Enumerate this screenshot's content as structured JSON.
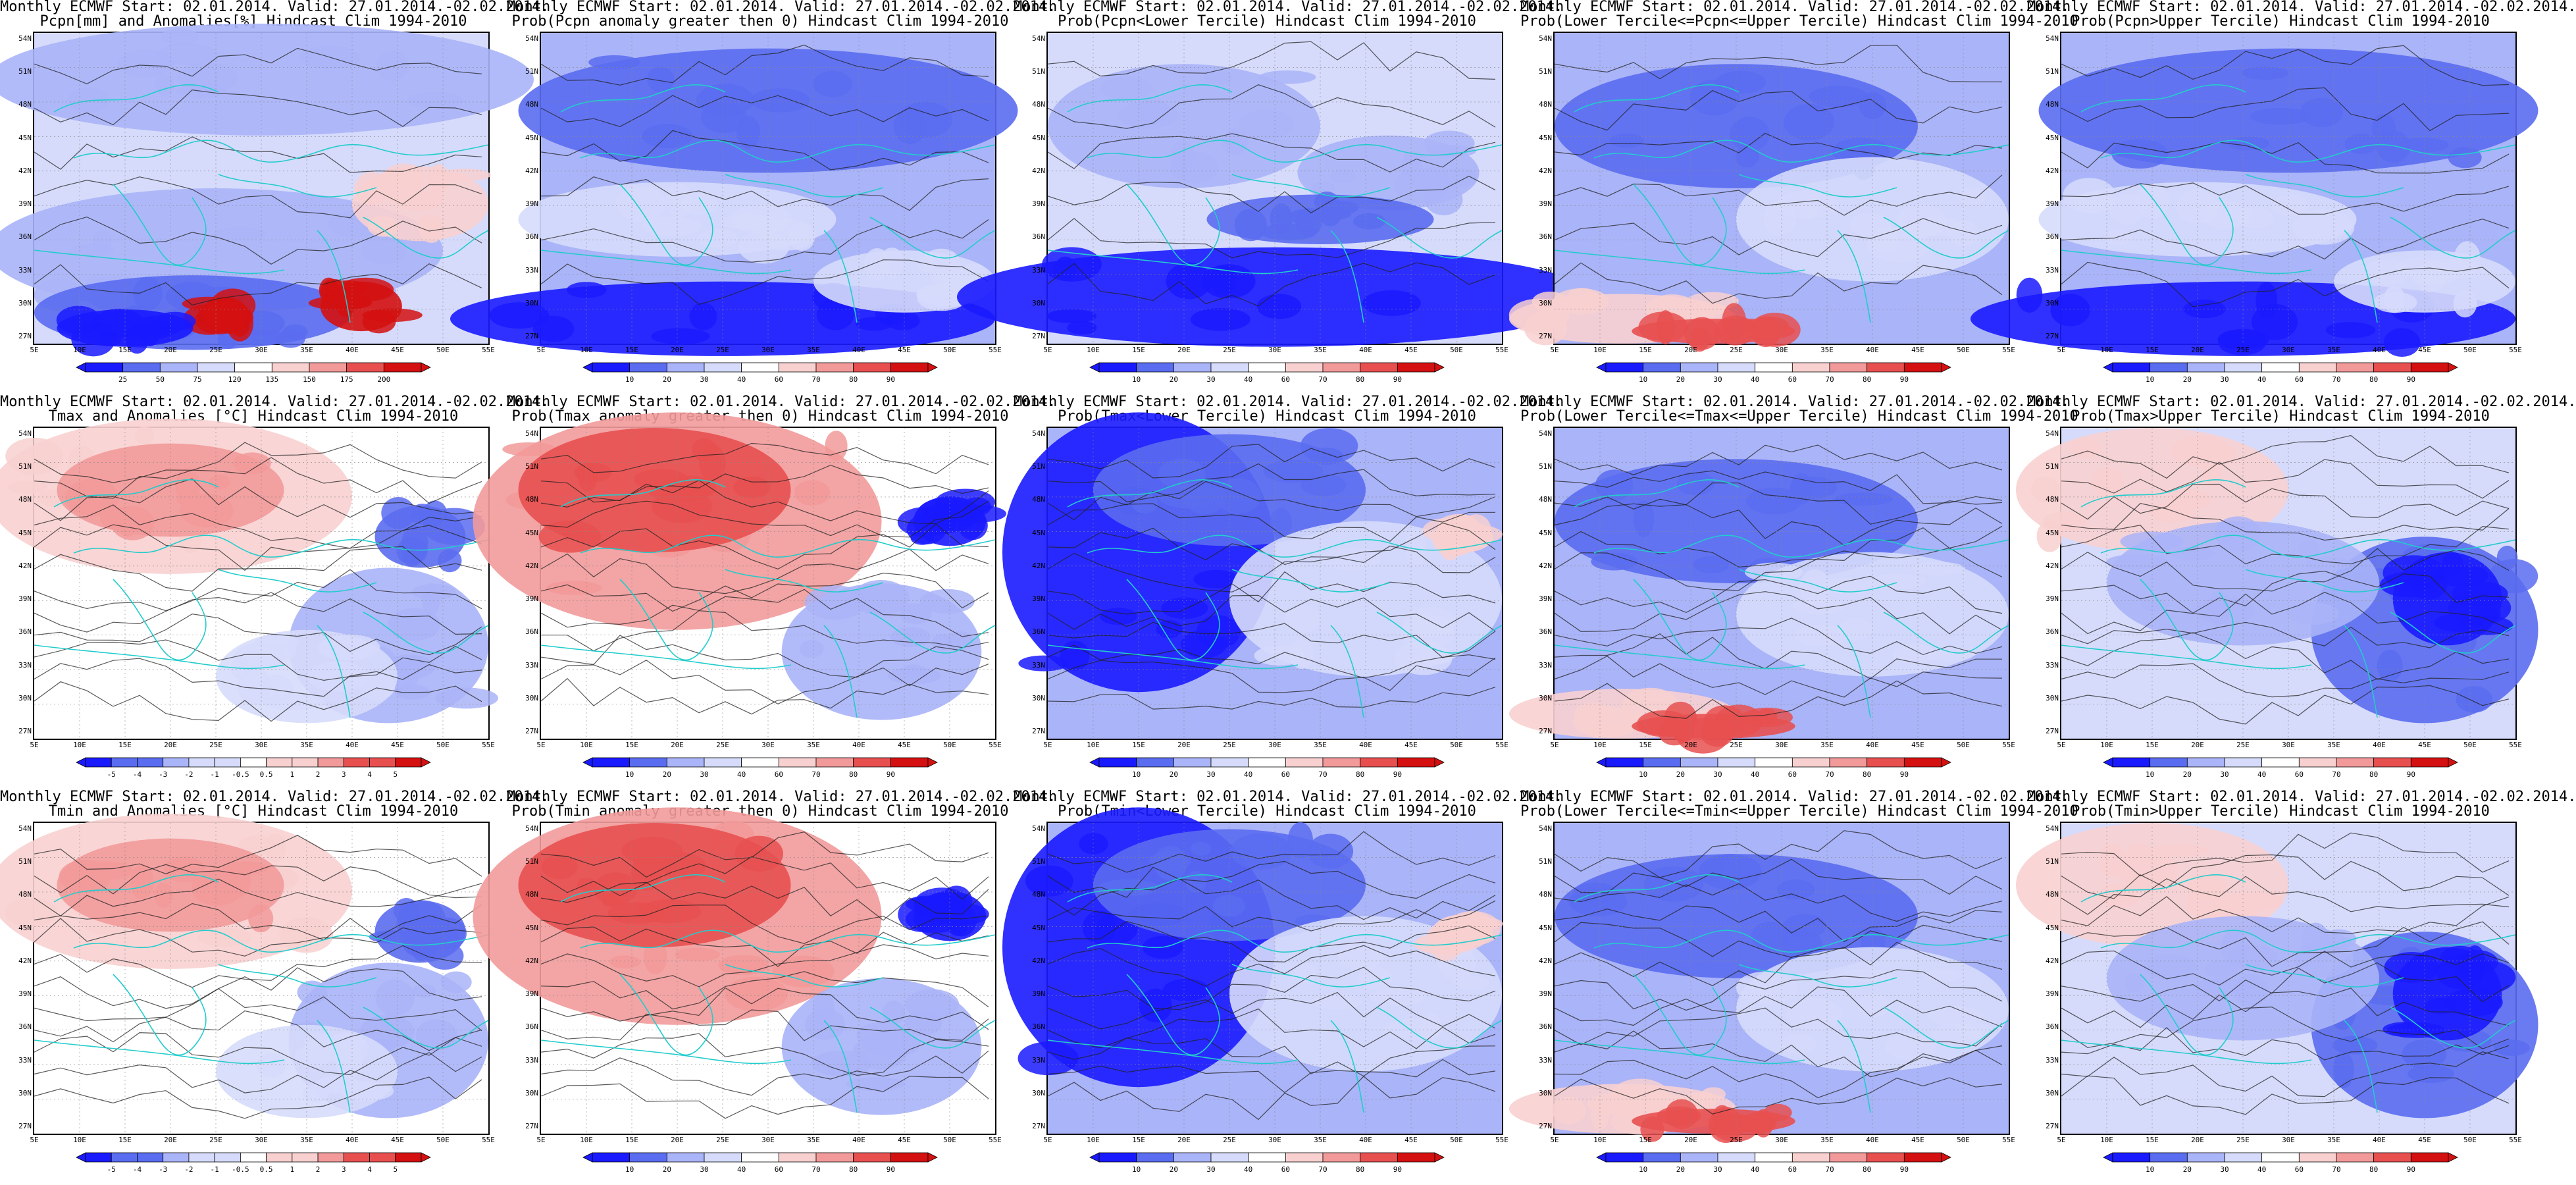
{
  "figure": {
    "rows": [
      {
        "variable": "Pcpn",
        "panels": [
          {
            "line1": "Monthly ECMWF Start: 02.01.2014. Valid: 27.01.2014.-02.02.2014.",
            "line2": "Pcpn[mm] and Anomalies[%] Hindcast Clim 1994-2010",
            "colorbar": [
              "25",
              "50",
              "75",
              "120",
              "135",
              "150",
              "175",
              "200"
            ],
            "scheme": "anom-pcpn"
          },
          {
            "line1": "Monthly ECMWF Start: 02.01.2014. Valid: 27.01.2014.-02.02.2014.",
            "line2": "Prob(Pcpn anomaly greater then 0) Hindcast Clim 1994-2010",
            "colorbar": [
              "10",
              "20",
              "30",
              "40",
              "60",
              "70",
              "80",
              "90"
            ],
            "scheme": "prob-blue"
          },
          {
            "line1": "Monthly ECMWF Start: 02.01.2014. Valid: 27.01.2014.-02.02.2014.",
            "line2": "Prob(Pcpn<Lower Tercile) Hindcast Clim 1994-2010",
            "colorbar": [
              "10",
              "20",
              "30",
              "40",
              "60",
              "70",
              "80",
              "90"
            ],
            "scheme": "prob-lower"
          },
          {
            "line1": "Monthly ECMWF Start: 02.01.2014. Valid: 27.01.2014.-02.02.2014.",
            "line2": "Prob(Lower Tercile<=Pcpn<=Upper Tercile) Hindcast Clim 1994-2010",
            "colorbar": [
              "10",
              "20",
              "30",
              "40",
              "60",
              "70",
              "80",
              "90"
            ],
            "scheme": "prob-mid"
          },
          {
            "line1": "Monthly ECMWF Start: 02.01.2014. Valid: 27.01.2014.-02.02.2014.",
            "line2": "Prob(Pcpn>Upper Tercile) Hindcast Clim 1994-2010",
            "colorbar": [
              "10",
              "20",
              "30",
              "40",
              "60",
              "70",
              "80",
              "90"
            ],
            "scheme": "prob-blue"
          }
        ]
      },
      {
        "variable": "Tmax",
        "panels": [
          {
            "line1": "Monthly ECMWF Start: 02.01.2014. Valid: 27.01.2014.-02.02.2014.",
            "line2": "Tmax and Anomalies [°C] Hindcast Clim 1994-2010",
            "colorbar": [
              "-5",
              "-4",
              "-3",
              "-2",
              "-1",
              "-0.5",
              "0.5",
              "1",
              "2",
              "3",
              "4",
              "5"
            ],
            "scheme": "anom-warm"
          },
          {
            "line1": "Monthly ECMWF Start: 02.01.2014. Valid: 27.01.2014.-02.02.2014.",
            "line2": "Prob(Tmax anomaly greater then 0) Hindcast Clim 1994-2010",
            "colorbar": [
              "10",
              "20",
              "30",
              "40",
              "60",
              "70",
              "80",
              "90"
            ],
            "scheme": "prob-warm"
          },
          {
            "line1": "Monthly ECMWF Start: 02.01.2014. Valid: 27.01.2014.-02.02.2014.",
            "line2": "Prob(Tmax<Lower Tercile) Hindcast Clim 1994-2010",
            "colorbar": [
              "10",
              "20",
              "30",
              "40",
              "60",
              "70",
              "80",
              "90"
            ],
            "scheme": "prob-coldnorth"
          },
          {
            "line1": "Monthly ECMWF Start: 02.01.2014. Valid: 27.01.2014.-02.02.2014.",
            "line2": "Prob(Lower Tercile<=Tmax<=Upper Tercile) Hindcast Clim 1994-2010",
            "colorbar": [
              "10",
              "20",
              "30",
              "40",
              "60",
              "70",
              "80",
              "90"
            ],
            "scheme": "prob-mid"
          },
          {
            "line1": "Monthly ECMWF Start: 02.01.2014. Valid: 27.01.2014.-02.02.2014.",
            "line2": "Prob(Tmax>Upper Tercile) Hindcast Clim 1994-2010",
            "colorbar": [
              "10",
              "20",
              "30",
              "40",
              "60",
              "70",
              "80",
              "90"
            ],
            "scheme": "prob-upper"
          }
        ]
      },
      {
        "variable": "Tmin",
        "panels": [
          {
            "line1": "Monthly ECMWF Start: 02.01.2014. Valid: 27.01.2014.-02.02.2014.",
            "line2": "Tmin and Anomalies [°C] Hindcast Clim 1994-2010",
            "colorbar": [
              "-5",
              "-4",
              "-3",
              "-2",
              "-1",
              "-0.5",
              "0.5",
              "1",
              "2",
              "3",
              "4",
              "5"
            ],
            "scheme": "anom-warm"
          },
          {
            "line1": "Monthly ECMWF Start: 02.01.2014. Valid: 27.01.2014.-02.02.2014.",
            "line2": "Prob(Tmin anomaly greater then 0) Hindcast Clim 1994-2010",
            "colorbar": [
              "10",
              "20",
              "30",
              "40",
              "60",
              "70",
              "80",
              "90"
            ],
            "scheme": "prob-warm"
          },
          {
            "line1": "Monthly ECMWF Start: 02.01.2014. Valid: 27.01.2014.-02.02.2014.",
            "line2": "Prob(Tmin<Lower Tercile) Hindcast Clim 1994-2010",
            "colorbar": [
              "10",
              "20",
              "30",
              "40",
              "60",
              "70",
              "80",
              "90"
            ],
            "scheme": "prob-coldnorth"
          },
          {
            "line1": "Monthly ECMWF Start: 02.01.2014. Valid: 27.01.2014.-02.02.2014.",
            "line2": "Prob(Lower Tercile<=Tmin<=Upper Tercile) Hindcast Clim 1994-2010",
            "colorbar": [
              "10",
              "20",
              "30",
              "40",
              "60",
              "70",
              "80",
              "90"
            ],
            "scheme": "prob-mid"
          },
          {
            "line1": "Monthly ECMWF Start: 02.01.2014. Valid: 27.01.2014.-02.02.2014.",
            "line2": "Prob(Tmin>Upper Tercile) Hindcast Clim 1994-2010",
            "colorbar": [
              "10",
              "20",
              "30",
              "40",
              "60",
              "70",
              "80",
              "90"
            ],
            "scheme": "prob-upper"
          }
        ]
      }
    ],
    "lat_labels": [
      "54N",
      "51N",
      "48N",
      "45N",
      "42N",
      "39N",
      "36N",
      "33N",
      "30N",
      "27N"
    ],
    "lon_labels": [
      "5E",
      "10E",
      "15E",
      "20E",
      "25E",
      "30E",
      "35E",
      "40E",
      "45E",
      "50E",
      "55E"
    ],
    "colors": {
      "deep_blue": "#1a1aff",
      "mid_blue": "#5a6cf0",
      "light_blue": "#aab4f8",
      "pale_blue": "#d6dbfb",
      "pale_red": "#f8d0d0",
      "light_red": "#f29a9a",
      "mid_red": "#e85050",
      "deep_red": "#d41010",
      "coast": "#22cccc",
      "contour": "#222222"
    }
  }
}
